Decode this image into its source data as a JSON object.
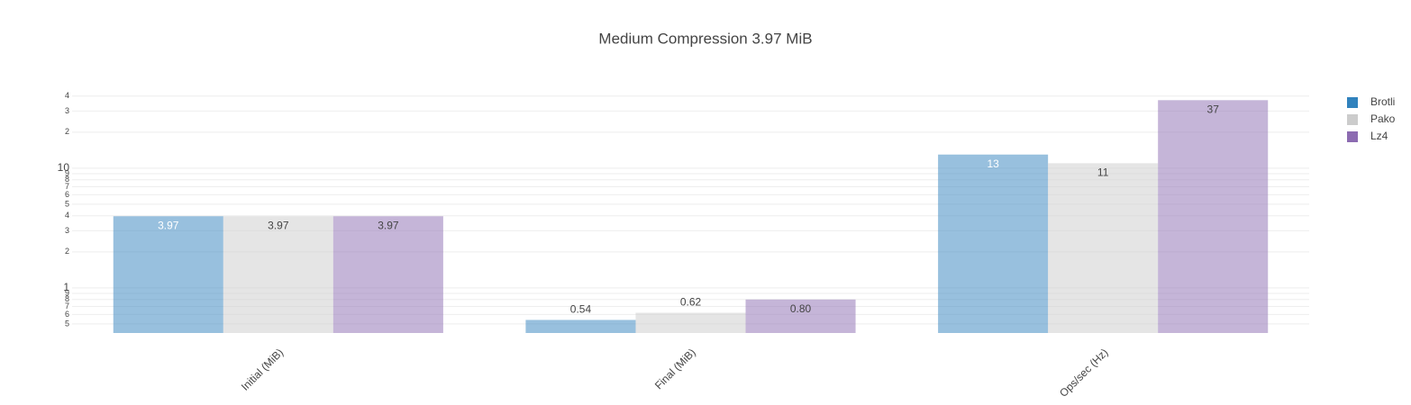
{
  "chart_data": {
    "type": "bar",
    "title": "Medium Compression 3.97 MiB",
    "categories": [
      "Initial (MiB)",
      "Final (MiB)",
      "Ops/sec (Hz)"
    ],
    "series": [
      {
        "name": "Brotli",
        "color": "#3182bd",
        "values": [
          3.97,
          0.54,
          13
        ],
        "value_labels": [
          "3.97",
          "0.54",
          "13"
        ]
      },
      {
        "name": "Pako",
        "color": "#cccccc",
        "values": [
          3.97,
          0.62,
          11
        ],
        "value_labels": [
          "3.97",
          "0.62",
          "11"
        ]
      },
      {
        "name": "Lz4",
        "color": "#8c6bb1",
        "values": [
          3.97,
          0.8,
          37
        ],
        "value_labels": [
          "3.97",
          "0.80",
          "37"
        ]
      }
    ],
    "log_y": true,
    "ylim": [
      0.42,
      45
    ],
    "yticks": [
      {
        "value": 0.5,
        "label": "5"
      },
      {
        "value": 0.6,
        "label": "6"
      },
      {
        "value": 0.7,
        "label": "7"
      },
      {
        "value": 0.8,
        "label": "8"
      },
      {
        "value": 0.9,
        "label": "9"
      },
      1,
      2,
      3,
      4,
      5,
      6,
      7,
      8,
      9,
      10,
      {
        "value": 20,
        "label": "2"
      },
      {
        "value": 30,
        "label": "3"
      },
      {
        "value": 40,
        "label": "4"
      }
    ],
    "grid": true,
    "legend": "right"
  }
}
